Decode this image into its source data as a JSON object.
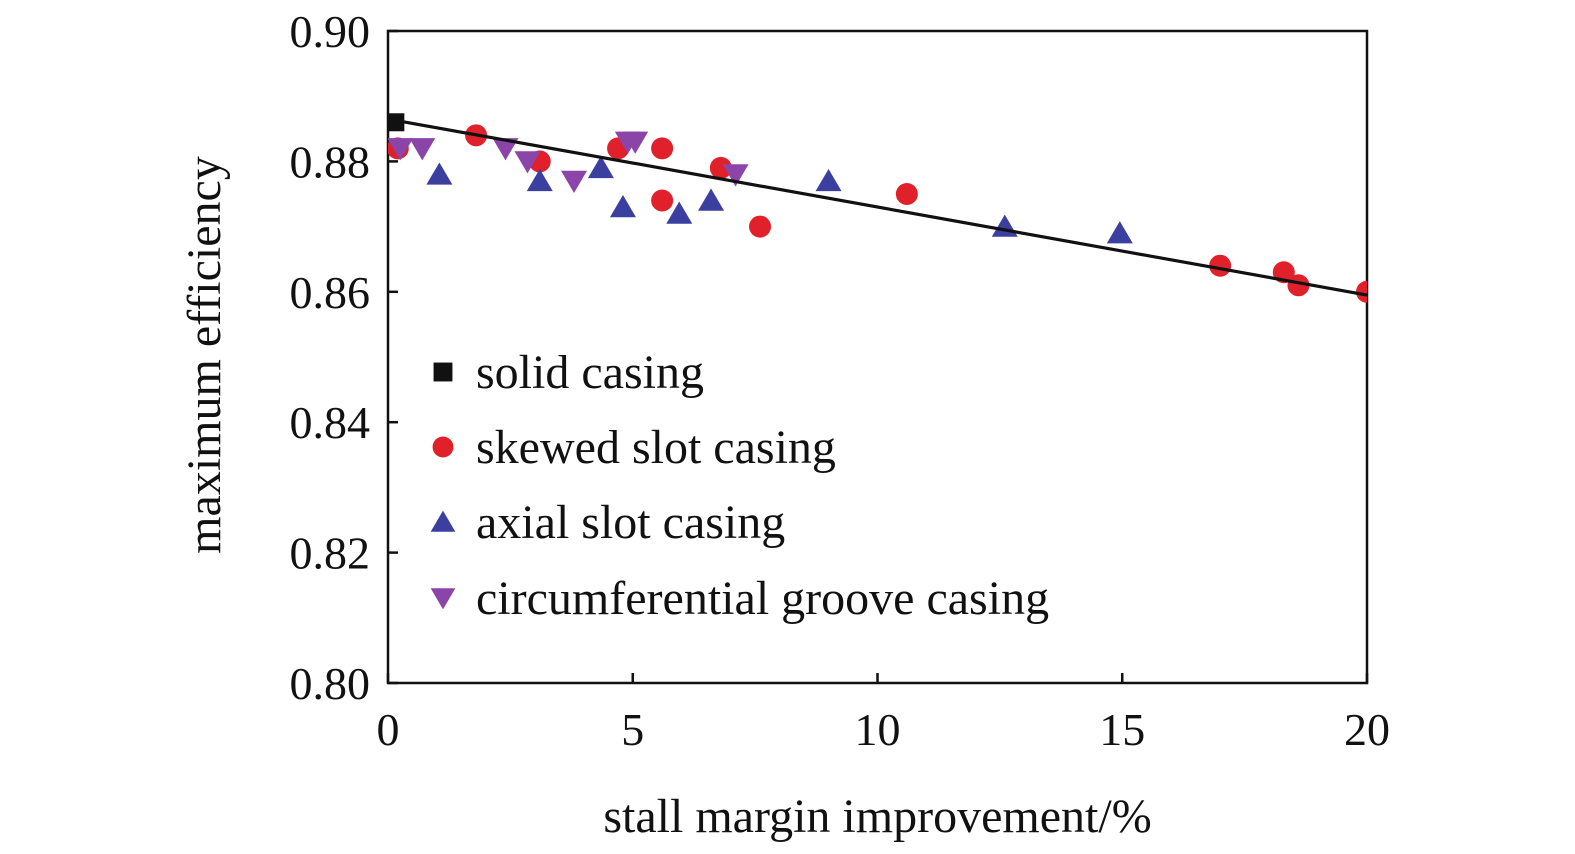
{
  "chart_data": {
    "type": "scatter",
    "xlabel": "stall margin improvement/%",
    "ylabel": "maximum efficiency",
    "xlim": [
      0,
      20
    ],
    "ylim": [
      0.8,
      0.9
    ],
    "x_ticks": [
      0,
      5,
      10,
      15,
      20
    ],
    "x_tick_labels": [
      "0",
      "5",
      "10",
      "15",
      "20"
    ],
    "y_ticks": [
      0.8,
      0.82,
      0.84,
      0.86,
      0.88,
      0.9
    ],
    "y_tick_labels": [
      "0.80",
      "0.82",
      "0.84",
      "0.86",
      "0.88",
      "0.90"
    ],
    "grid": false,
    "legend_position": "lower-left",
    "series": [
      {
        "name": "solid casing",
        "marker": "square",
        "color": "#111111",
        "points": [
          [
            0.15,
            0.886
          ]
        ]
      },
      {
        "name": "skewed slot casing",
        "marker": "circle",
        "color": "#e0202a",
        "points": [
          [
            0.2,
            0.882
          ],
          [
            1.8,
            0.884
          ],
          [
            3.1,
            0.88
          ],
          [
            4.7,
            0.882
          ],
          [
            5.6,
            0.882
          ],
          [
            5.6,
            0.874
          ],
          [
            6.8,
            0.879
          ],
          [
            7.6,
            0.87
          ],
          [
            10.6,
            0.875
          ],
          [
            17.0,
            0.864
          ],
          [
            18.3,
            0.863
          ],
          [
            18.6,
            0.861
          ],
          [
            20.0,
            0.86
          ]
        ]
      },
      {
        "name": "axial slot casing",
        "marker": "triangle-up",
        "color": "#3a3fa0",
        "points": [
          [
            1.05,
            0.878
          ],
          [
            3.1,
            0.877
          ],
          [
            4.35,
            0.879
          ],
          [
            4.8,
            0.873
          ],
          [
            5.95,
            0.872
          ],
          [
            6.6,
            0.874
          ],
          [
            9.0,
            0.877
          ],
          [
            12.6,
            0.87
          ],
          [
            14.95,
            0.869
          ]
        ]
      },
      {
        "name": "circumferential groove casing",
        "marker": "triangle-down",
        "color": "#8b44a8",
        "points": [
          [
            0.25,
            0.882
          ],
          [
            0.7,
            0.882
          ],
          [
            2.4,
            0.882
          ],
          [
            2.85,
            0.88
          ],
          [
            3.8,
            0.877
          ],
          [
            4.9,
            0.883
          ],
          [
            5.05,
            0.883
          ],
          [
            7.1,
            0.878
          ]
        ]
      }
    ],
    "fit_line": {
      "color": "#111111",
      "points": [
        [
          0.0,
          0.8865
        ],
        [
          20.0,
          0.8595
        ]
      ]
    }
  }
}
